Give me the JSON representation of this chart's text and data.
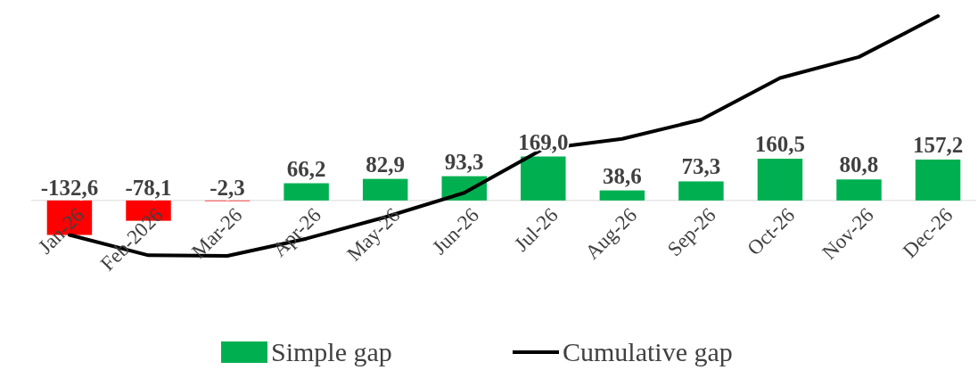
{
  "chart_data": {
    "type": "bar",
    "categories": [
      "Jan-26",
      "Feb-2026",
      "Mar-26",
      "Apr-26",
      "May-26",
      "Jun-26",
      "Jul-26",
      "Aug-26",
      "Sep-26",
      "Oct-26",
      "Nov-26",
      "Dec-26"
    ],
    "series": [
      {
        "name": "Simple gap",
        "color": "#00b050",
        "colors": [
          "#ff0000",
          "#ff0000",
          "#ff0000",
          "#00b050",
          "#00b050",
          "#00b050",
          "#00b050",
          "#00b050",
          "#00b050",
          "#00b050",
          "#00b050",
          "#00b050"
        ],
        "values": [
          -132.6,
          -78.1,
          -2.3,
          66.2,
          82.9,
          93.3,
          169.0,
          38.6,
          73.3,
          160.5,
          80.8,
          157.2
        ],
        "value_labels": [
          "-132,6",
          "-78,1",
          "-2,3",
          "66,2",
          "82,9",
          "93,3",
          "169,0",
          "38,6",
          "73,3",
          "160,5",
          "80,8",
          "157,2"
        ]
      },
      {
        "name": "Cumulative gap",
        "type": "line",
        "color": "#000000",
        "values": [
          -132.6,
          -210.7,
          -213.0,
          -146.8,
          -63.9,
          29.4,
          198.4,
          237.0,
          310.3,
          470.8,
          551.6,
          708.8
        ]
      }
    ],
    "legend": "bottom"
  }
}
